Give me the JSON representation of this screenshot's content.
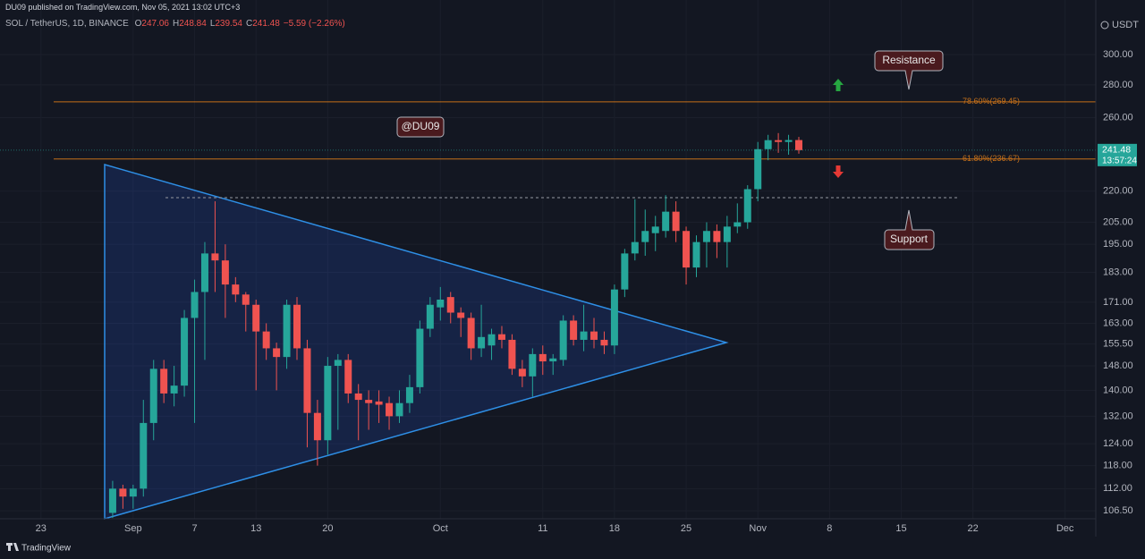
{
  "published": "DU09 published on TradingView.com, Nov 05, 2021 13:02 UTC+3",
  "footer": "TradingView",
  "chart_data": {
    "type": "candlestick",
    "title": "SOL / TetherUS, 1D, BINANCE",
    "ohlc": [
      {
        "label": "O",
        "value": 247.06
      },
      {
        "label": "H",
        "value": 248.84
      },
      {
        "label": "L",
        "value": 239.54
      },
      {
        "label": "C",
        "value": 241.48
      }
    ],
    "change": "−5.59 (−2.26%)",
    "currency": "USDT",
    "log_scale": true,
    "grid": true,
    "up_color": "#26a69a",
    "down_color": "#ef5350",
    "x": [
      "2021-08-30",
      "2021-08-31",
      "2021-09-01",
      "2021-09-02",
      "2021-09-03",
      "2021-09-04",
      "2021-09-05",
      "2021-09-06",
      "2021-09-07",
      "2021-09-08",
      "2021-09-09",
      "2021-09-10",
      "2021-09-11",
      "2021-09-12",
      "2021-09-13",
      "2021-09-14",
      "2021-09-15",
      "2021-09-16",
      "2021-09-17",
      "2021-09-18",
      "2021-09-19",
      "2021-09-20",
      "2021-09-21",
      "2021-09-22",
      "2021-09-23",
      "2021-09-24",
      "2021-09-25",
      "2021-09-26",
      "2021-09-27",
      "2021-09-28",
      "2021-09-29",
      "2021-09-30",
      "2021-10-01",
      "2021-10-02",
      "2021-10-03",
      "2021-10-04",
      "2021-10-05",
      "2021-10-06",
      "2021-10-07",
      "2021-10-08",
      "2021-10-09",
      "2021-10-10",
      "2021-10-11",
      "2021-10-12",
      "2021-10-13",
      "2021-10-14",
      "2021-10-15",
      "2021-10-16",
      "2021-10-17",
      "2021-10-18",
      "2021-10-19",
      "2021-10-20",
      "2021-10-21",
      "2021-10-22",
      "2021-10-23",
      "2021-10-24",
      "2021-10-25",
      "2021-10-26",
      "2021-10-27",
      "2021-10-28",
      "2021-10-29",
      "2021-10-30",
      "2021-10-31",
      "2021-11-01",
      "2021-11-02",
      "2021-11-03",
      "2021-11-04",
      "2021-11-05"
    ],
    "open": [
      106,
      112,
      110,
      112,
      130,
      147,
      139,
      141.5,
      165,
      175,
      191,
      188,
      178,
      174,
      170,
      160,
      154,
      151,
      170,
      154,
      133,
      125,
      148,
      150,
      139,
      137,
      136.5,
      136,
      132,
      136,
      141,
      161,
      169,
      173,
      167,
      165,
      154,
      155,
      159,
      157,
      147,
      144.5,
      152,
      149.5,
      150,
      164,
      157,
      160,
      157,
      155,
      176,
      191,
      196,
      200,
      201,
      210,
      201,
      185,
      196,
      201,
      196,
      203,
      205,
      221,
      242,
      247,
      246,
      247.06
    ],
    "high": [
      114,
      113,
      113,
      137,
      150,
      150,
      148,
      168,
      180,
      196,
      215,
      195,
      181,
      175,
      172,
      163,
      156,
      172,
      173,
      157,
      137,
      151,
      152,
      152,
      142,
      140,
      140,
      138,
      140,
      145,
      164,
      173,
      177,
      175,
      169,
      167,
      170,
      161,
      162,
      159,
      150,
      154,
      155,
      152,
      166,
      166,
      170,
      165,
      160,
      178,
      193,
      216,
      211,
      208,
      218,
      215,
      203,
      199,
      205,
      204,
      208,
      214,
      223,
      246,
      250,
      251,
      250,
      248.84
    ],
    "low": [
      104.8,
      107,
      107,
      110,
      125,
      136,
      135,
      138,
      130,
      150,
      175,
      165,
      171,
      160,
      140,
      150,
      140,
      147,
      150,
      123,
      118,
      121,
      128,
      136,
      125,
      128,
      130,
      128,
      130,
      133,
      139,
      158,
      164,
      163,
      158,
      150,
      151,
      150,
      154,
      145,
      141,
      138,
      145,
      145,
      148,
      155,
      153,
      154,
      152,
      152,
      173,
      188,
      190,
      192,
      198,
      196,
      178,
      181,
      185,
      189,
      185,
      200,
      202,
      215,
      236,
      240,
      239,
      239.54
    ],
    "close": [
      112,
      110,
      112,
      130,
      147,
      139,
      141.5,
      165,
      175,
      191,
      188,
      178,
      174,
      170,
      160,
      154,
      151,
      170,
      154,
      133,
      125,
      148,
      150,
      139,
      137,
      136,
      135.5,
      132,
      136,
      141,
      161,
      170,
      172,
      167,
      165,
      154,
      158,
      159,
      157,
      147,
      144.5,
      152,
      149.5,
      150.5,
      164,
      157,
      160,
      157,
      155,
      176,
      191,
      196,
      201,
      203,
      210,
      201,
      185,
      196,
      201,
      196,
      203,
      205,
      221,
      242,
      247,
      246,
      247.06,
      241.48
    ],
    "xlim": [
      "2021-08-19",
      "2021-12-04"
    ],
    "xticks": [
      {
        "value": "2021-08-23",
        "label": "23"
      },
      {
        "value": "2021-09-01",
        "label": "Sep"
      },
      {
        "value": "2021-09-07",
        "label": "7"
      },
      {
        "value": "2021-09-13",
        "label": "13"
      },
      {
        "value": "2021-09-20",
        "label": "20"
      },
      {
        "value": "2021-10-01",
        "label": "Oct"
      },
      {
        "value": "2021-10-11",
        "label": "11"
      },
      {
        "value": "2021-10-18",
        "label": "18"
      },
      {
        "value": "2021-10-25",
        "label": "25"
      },
      {
        "value": "2021-11-01",
        "label": "Nov"
      },
      {
        "value": "2021-11-08",
        "label": "8"
      },
      {
        "value": "2021-11-15",
        "label": "15"
      },
      {
        "value": "2021-11-22",
        "label": "22"
      },
      {
        "value": "2021-12-01",
        "label": "Dec"
      }
    ],
    "ylim": [
      104.6,
      326
    ],
    "yticks": [
      {
        "value": 300,
        "label": "300.00"
      },
      {
        "value": 280,
        "label": "280.00"
      },
      {
        "value": 260,
        "label": "260.00"
      },
      {
        "value": 220,
        "label": "220.00"
      },
      {
        "value": 205,
        "label": "205.00"
      },
      {
        "value": 195,
        "label": "195.00"
      },
      {
        "value": 183,
        "label": "183.00"
      },
      {
        "value": 171,
        "label": "171.00"
      },
      {
        "value": 163,
        "label": "163.00"
      },
      {
        "value": 155.5,
        "label": "155.50"
      },
      {
        "value": 148,
        "label": "148.00"
      },
      {
        "value": 140,
        "label": "140.00"
      },
      {
        "value": 132,
        "label": "132.00"
      },
      {
        "value": 124,
        "label": "124.00"
      },
      {
        "value": 118,
        "label": "118.00"
      },
      {
        "value": 112,
        "label": "112.00"
      },
      {
        "value": 106.5,
        "label": "106.50"
      }
    ],
    "levels": [
      {
        "label": "78.60%(269.45)",
        "value": 269.45,
        "color": "#c5701a"
      },
      {
        "label": "61.80%(236.67)",
        "value": 236.67,
        "color": "#c5701a"
      }
    ],
    "last_price": {
      "value": 241.48,
      "countdown": "13:57:24",
      "color": "#26a69a"
    },
    "annotations": {
      "tag": "@DU09",
      "resistance": "Resistance",
      "support": "Support"
    }
  }
}
